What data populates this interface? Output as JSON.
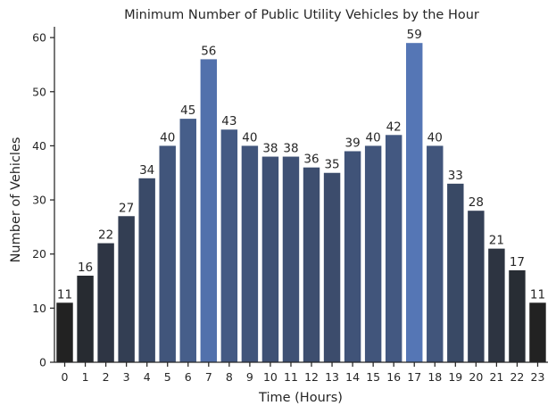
{
  "chart_data": {
    "type": "bar",
    "title": "Minimum Number of Public Utility Vehicles by the Hour",
    "xlabel": "Time (Hours)",
    "ylabel": "Number of Vehicles",
    "categories": [
      "0",
      "1",
      "2",
      "3",
      "4",
      "5",
      "6",
      "7",
      "8",
      "9",
      "10",
      "11",
      "12",
      "13",
      "14",
      "15",
      "16",
      "17",
      "18",
      "19",
      "20",
      "21",
      "22",
      "23"
    ],
    "values": [
      11,
      16,
      22,
      27,
      34,
      40,
      45,
      56,
      43,
      40,
      38,
      38,
      36,
      35,
      39,
      40,
      42,
      59,
      40,
      33,
      28,
      21,
      17,
      11
    ],
    "data_labels": [
      "11",
      "16",
      "22",
      "27",
      "34",
      "40",
      "45",
      "56",
      "43",
      "40",
      "38",
      "38",
      "36",
      "35",
      "39",
      "40",
      "42",
      "59",
      "40",
      "33",
      "28",
      "21",
      "17",
      "11"
    ],
    "ylim": [
      0,
      62
    ],
    "yticks": [
      0,
      10,
      20,
      30,
      40,
      50,
      60
    ],
    "grid": false,
    "color_low": "#222222",
    "color_high": "#5576b5"
  }
}
